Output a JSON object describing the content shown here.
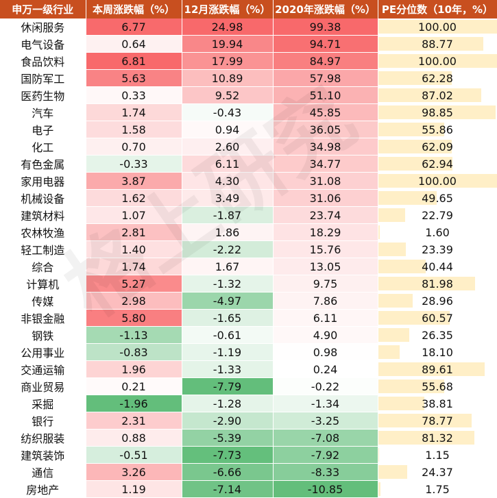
{
  "headers": [
    "申万一级行业",
    "本周涨跌幅（%）",
    "12月涨跌幅（%）",
    "2020年涨跌幅（%）",
    "PE分位数（10年，%）"
  ],
  "watermark": "格上研究",
  "rows": [
    {
      "industry": "休闲服务",
      "week": "6.77",
      "dec": "24.98",
      "year": "99.38",
      "pe": "100.00"
    },
    {
      "industry": "电气设备",
      "week": "0.64",
      "dec": "19.94",
      "year": "94.71",
      "pe": "88.77"
    },
    {
      "industry": "食品饮料",
      "week": "6.81",
      "dec": "17.99",
      "year": "84.97",
      "pe": "100.00"
    },
    {
      "industry": "国防军工",
      "week": "5.63",
      "dec": "10.89",
      "year": "57.98",
      "pe": "62.28"
    },
    {
      "industry": "医药生物",
      "week": "0.33",
      "dec": "9.52",
      "year": "51.10",
      "pe": "87.02"
    },
    {
      "industry": "汽车",
      "week": "1.74",
      "dec": "-0.43",
      "year": "45.85",
      "pe": "98.85"
    },
    {
      "industry": "电子",
      "week": "1.58",
      "dec": "0.94",
      "year": "36.05",
      "pe": "55.86"
    },
    {
      "industry": "化工",
      "week": "0.70",
      "dec": "2.60",
      "year": "34.98",
      "pe": "62.09"
    },
    {
      "industry": "有色金属",
      "week": "-0.33",
      "dec": "6.11",
      "year": "34.77",
      "pe": "62.94"
    },
    {
      "industry": "家用电器",
      "week": "3.87",
      "dec": "4.30",
      "year": "31.08",
      "pe": "100.00"
    },
    {
      "industry": "机械设备",
      "week": "1.62",
      "dec": "3.49",
      "year": "31.06",
      "pe": "49.65"
    },
    {
      "industry": "建筑材料",
      "week": "1.07",
      "dec": "-1.87",
      "year": "23.74",
      "pe": "22.79"
    },
    {
      "industry": "农林牧渔",
      "week": "2.81",
      "dec": "1.86",
      "year": "18.29",
      "pe": "1.60"
    },
    {
      "industry": "轻工制造",
      "week": "1.40",
      "dec": "-2.22",
      "year": "15.76",
      "pe": "23.39"
    },
    {
      "industry": "综合",
      "week": "1.74",
      "dec": "1.67",
      "year": "13.05",
      "pe": "40.44"
    },
    {
      "industry": "计算机",
      "week": "5.27",
      "dec": "-1.32",
      "year": "9.75",
      "pe": "81.98"
    },
    {
      "industry": "传媒",
      "week": "2.98",
      "dec": "-4.97",
      "year": "7.86",
      "pe": "28.96"
    },
    {
      "industry": "非银金融",
      "week": "5.80",
      "dec": "-1.65",
      "year": "6.11",
      "pe": "60.57"
    },
    {
      "industry": "钢铁",
      "week": "-1.13",
      "dec": "-0.61",
      "year": "4.90",
      "pe": "26.35"
    },
    {
      "industry": "公用事业",
      "week": "-0.83",
      "dec": "-1.19",
      "year": "0.98",
      "pe": "18.10"
    },
    {
      "industry": "交通运输",
      "week": "1.96",
      "dec": "-1.33",
      "year": "0.24",
      "pe": "89.61"
    },
    {
      "industry": "商业贸易",
      "week": "0.21",
      "dec": "-7.79",
      "year": "-0.22",
      "pe": "55.68"
    },
    {
      "industry": "采掘",
      "week": "-1.96",
      "dec": "-1.28",
      "year": "-1.34",
      "pe": "38.81"
    },
    {
      "industry": "银行",
      "week": "2.31",
      "dec": "-2.90",
      "year": "-3.25",
      "pe": "78.77"
    },
    {
      "industry": "纺织服装",
      "week": "0.88",
      "dec": "-5.39",
      "year": "-7.08",
      "pe": "81.32"
    },
    {
      "industry": "建筑装饰",
      "week": "-0.51",
      "dec": "-7.73",
      "year": "-7.92",
      "pe": "1.15"
    },
    {
      "industry": "通信",
      "week": "3.26",
      "dec": "-6.66",
      "year": "-8.33",
      "pe": "24.37"
    },
    {
      "industry": "房地产",
      "week": "1.19",
      "dec": "-7.14",
      "year": "-10.85",
      "pe": "1.75"
    }
  ],
  "colors": {
    "header_bg": "#c84f1f",
    "positive_max": "#f8696b",
    "negative_max": "#63be7b",
    "pe_bar": "#ffefc7"
  }
}
